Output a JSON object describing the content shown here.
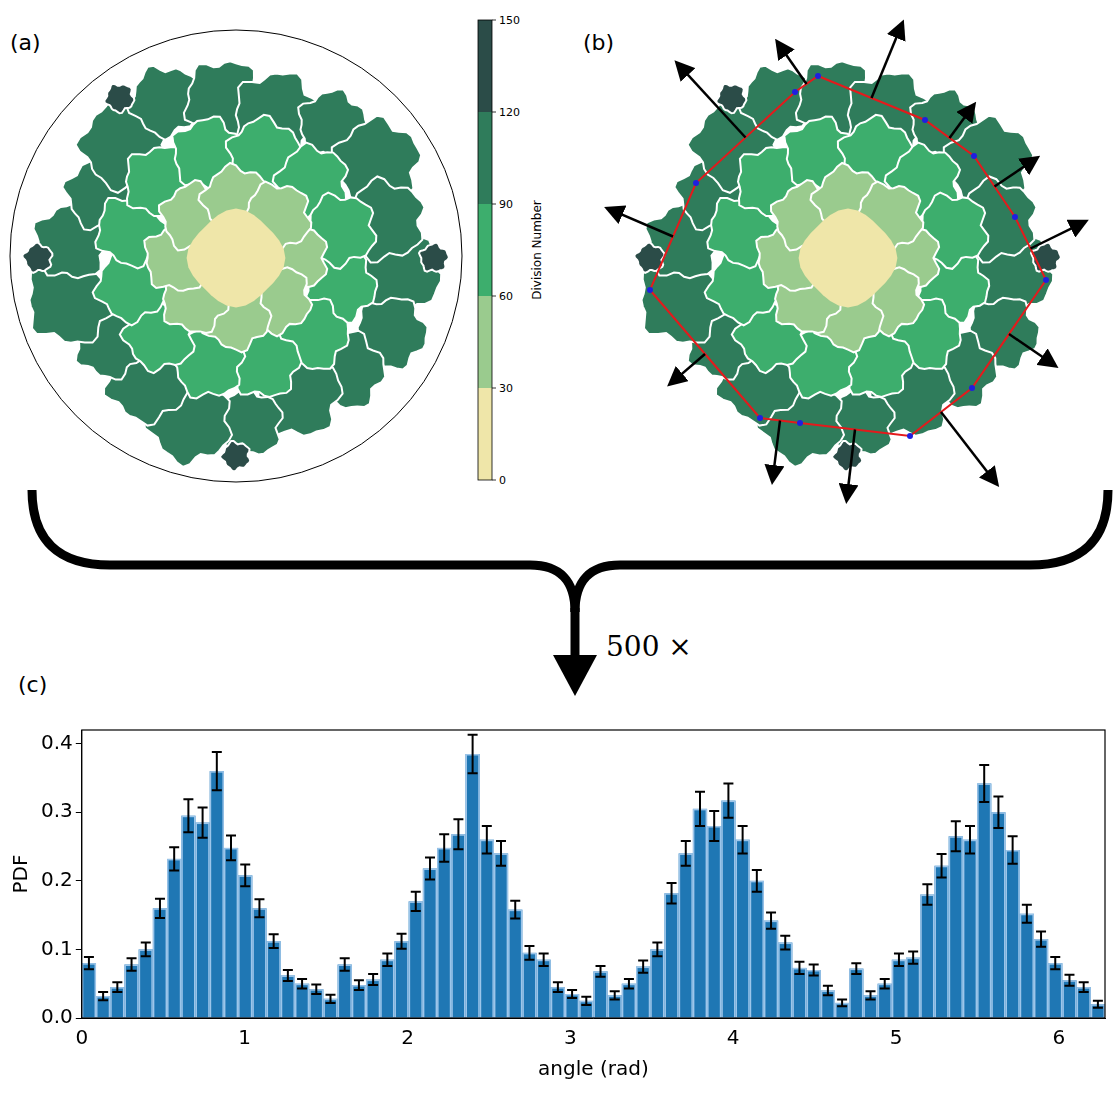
{
  "panels": {
    "a": {
      "label": "(a)",
      "colorbar": {
        "label": "Division Number",
        "range": [
          0,
          150
        ],
        "ticks": [
          0,
          30,
          60,
          90,
          120,
          150
        ],
        "colors": [
          "#efe6a9",
          "#9acb8e",
          "#3dae6d",
          "#2f7c5b",
          "#2b4c48"
        ]
      }
    },
    "b": {
      "label": "(b)"
    },
    "c": {
      "label": "(c)"
    }
  },
  "annotation": "500 ×",
  "chart_data": {
    "type": "histogram",
    "x_label": "angle (rad)",
    "y_label": "PDF",
    "color": "#1f77b4",
    "grid": false,
    "bins": [
      0,
      0.0873,
      0.1745,
      0.2618,
      0.3491,
      0.4363,
      0.5236,
      0.6109,
      0.6981,
      0.7854,
      0.8727,
      0.9599,
      1.0472,
      1.1345,
      1.2217,
      1.309,
      1.3963,
      1.4835,
      1.5708,
      1.6581,
      1.7453,
      1.8326,
      1.9199,
      2.0071,
      2.0944,
      2.1817,
      2.2689,
      2.3562,
      2.4435,
      2.5307,
      2.618,
      2.7053,
      2.7925,
      2.8798,
      2.9671,
      3.0543,
      3.1416,
      3.2289,
      3.3161,
      3.4034,
      3.4907,
      3.5779,
      3.6652,
      3.7525,
      3.8397,
      3.927,
      4.0143,
      4.1015,
      4.1888,
      4.2761,
      4.3633,
      4.4506,
      4.5379,
      4.6251,
      4.7124,
      4.7997,
      4.8869,
      4.9742,
      5.0615,
      5.1487,
      5.236,
      5.3233,
      5.4105,
      5.4978,
      5.5851,
      5.6723,
      5.7596,
      5.8469,
      5.9341,
      6.0214,
      6.1087,
      6.1959,
      6.2832
    ],
    "values": [
      0.08,
      0.032,
      0.045,
      0.078,
      0.1,
      0.16,
      0.232,
      0.295,
      0.285,
      0.36,
      0.248,
      0.208,
      0.16,
      0.112,
      0.062,
      0.05,
      0.042,
      0.028,
      0.078,
      0.048,
      0.056,
      0.085,
      0.112,
      0.17,
      0.218,
      0.248,
      0.268,
      0.385,
      0.26,
      0.24,
      0.158,
      0.095,
      0.085,
      0.045,
      0.035,
      0.025,
      0.068,
      0.033,
      0.05,
      0.075,
      0.1,
      0.182,
      0.24,
      0.305,
      0.28,
      0.317,
      0.26,
      0.2,
      0.142,
      0.11,
      0.073,
      0.07,
      0.04,
      0.022,
      0.072,
      0.033,
      0.05,
      0.085,
      0.088,
      0.18,
      0.222,
      0.265,
      0.26,
      0.342,
      0.3,
      0.245,
      0.152,
      0.115,
      0.08,
      0.055,
      0.045,
      0.02
    ],
    "errors": [
      0.009,
      0.006,
      0.007,
      0.009,
      0.01,
      0.014,
      0.017,
      0.024,
      0.022,
      0.028,
      0.018,
      0.016,
      0.013,
      0.01,
      0.008,
      0.007,
      0.007,
      0.006,
      0.009,
      0.007,
      0.008,
      0.009,
      0.011,
      0.014,
      0.016,
      0.02,
      0.022,
      0.028,
      0.02,
      0.018,
      0.013,
      0.01,
      0.009,
      0.007,
      0.006,
      0.006,
      0.008,
      0.006,
      0.007,
      0.009,
      0.01,
      0.015,
      0.018,
      0.025,
      0.022,
      0.025,
      0.02,
      0.016,
      0.012,
      0.01,
      0.009,
      0.008,
      0.007,
      0.005,
      0.008,
      0.006,
      0.007,
      0.009,
      0.009,
      0.015,
      0.017,
      0.022,
      0.02,
      0.027,
      0.023,
      0.02,
      0.013,
      0.011,
      0.009,
      0.008,
      0.007,
      0.005
    ],
    "xlim": [
      0,
      6.2832
    ],
    "xticks": [
      0,
      1,
      2,
      3,
      4,
      5,
      6
    ],
    "ylim": [
      0,
      0.42
    ],
    "yticks": [
      {
        "value": 0,
        "label": "0.0"
      },
      {
        "value": 0.1,
        "label": "0.1"
      },
      {
        "value": 0.2,
        "label": "0.2"
      },
      {
        "value": 0.3,
        "label": "0.3"
      },
      {
        "value": 0.4,
        "label": "0.4"
      }
    ]
  }
}
